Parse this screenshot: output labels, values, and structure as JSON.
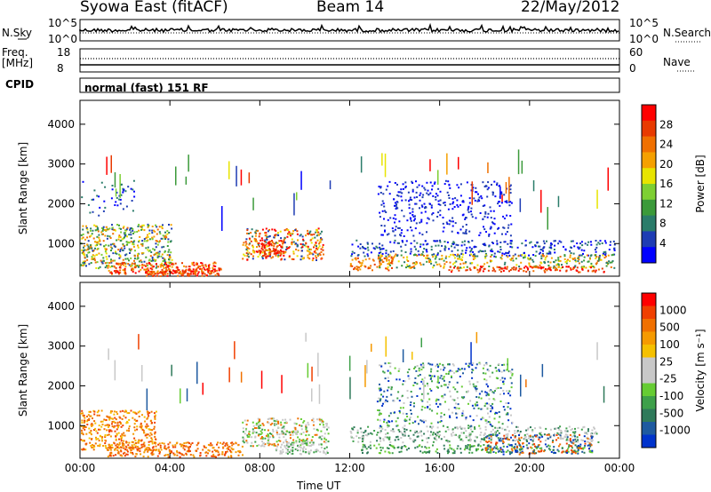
{
  "header": {
    "station": "Syowa East (fitACF)",
    "beam": "Beam 14",
    "date": "22/May/2012"
  },
  "noise_panel": {
    "left_label": "N.Sky",
    "right_label": "N.Search",
    "left_ticks": [
      "10^5",
      "10^0"
    ],
    "right_ticks": [
      "10^5",
      "10^0"
    ]
  },
  "freq_panel": {
    "left_label_1": "Freq.",
    "left_label_2": "[MHz]",
    "left_ticks": [
      "18",
      "8"
    ],
    "right_label": "Nave",
    "right_ticks": [
      "60",
      "0"
    ]
  },
  "cpid_panel": {
    "label": "CPID",
    "text": "normal (fast) 151 RF"
  },
  "chart_data": [
    {
      "type": "heatmap",
      "title": "",
      "xlabel": "",
      "ylabel": "Slant Range [km]",
      "ylim": [
        180,
        4600
      ],
      "yticks": [
        "4000",
        "3000",
        "2000",
        "1000"
      ],
      "xticks": [
        "00:00",
        "04:00",
        "08:00",
        "12:00",
        "16:00",
        "20:00",
        "00:00"
      ],
      "colorbar": {
        "label": "Power [dB]",
        "ticks": [
          "28",
          "24",
          "20",
          "16",
          "12",
          "8",
          "4"
        ],
        "colors": [
          "#0000ff",
          "#1e3cb4",
          "#2a7c6a",
          "#3b9a3a",
          "#7ecf33",
          "#e8e400",
          "#f5a000",
          "#f07000",
          "#e83a00",
          "#ff0000"
        ]
      }
    },
    {
      "type": "heatmap",
      "title": "",
      "xlabel": "Time UT",
      "ylabel": "Slant Range [km]",
      "ylim": [
        180,
        4600
      ],
      "yticks": [
        "4000",
        "3000",
        "2000",
        "1000"
      ],
      "xticks": [
        "00:00",
        "04:00",
        "08:00",
        "12:00",
        "16:00",
        "20:00",
        "00:00"
      ],
      "colorbar": {
        "label": "Velocity [m s⁻¹]",
        "ticks": [
          "1000",
          "500",
          "100",
          "25",
          "-25",
          "-100",
          "-500",
          "-1000"
        ],
        "colors": [
          "#0033cc",
          "#1e5aa0",
          "#2f7a5a",
          "#3ea04a",
          "#66cc33",
          "#c8c8c8",
          "#c8c8c8",
          "#f5c000",
          "#f59a00",
          "#f07000",
          "#f04000",
          "#ff0000"
        ]
      }
    }
  ]
}
